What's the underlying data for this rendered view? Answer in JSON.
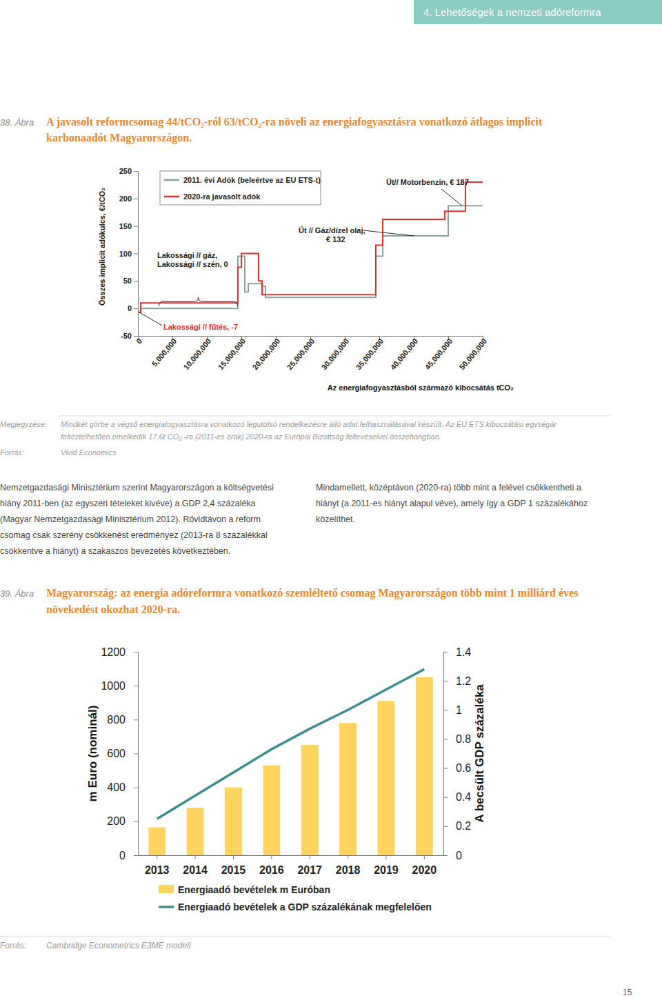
{
  "header": {
    "section": "4. Lehetőségek a nemzeti adóreformra"
  },
  "figures": [
    {
      "number": "38. Ábra",
      "title_lines": [
        "A javasolt reformcsomag 44/tCO₂-ról 63/tCO₂-ra növeli az energiafogyasztásra vonatkozó átlagos implicit",
        "karbonaadót Magyarországon."
      ],
      "note_label": "Megjegyzése:",
      "note_lines": [
        "Mindkét görbe a végső energiafogyasztásra vonatkozó legutolsó rendelkezésre álló adat felhasználásával készült. Az EU ETS kibocsátási egységár",
        "feltéztelhetően emelkedik 17.6t CO₂ -ra (2011-es árak) 2020-ra az Európai Bizottság feltevéseivel összehangban."
      ],
      "source_label": "Forrás:",
      "source": "Vivid Economics"
    },
    {
      "number": "39. Ábra",
      "title_lines": [
        "Magyarország: az energia adóreformra vonatkozó szemléltető csomag Magyarországon több mint 1 milliárd  éves",
        "növekedést okozhat 2020-ra."
      ],
      "source_label": "Forrás:",
      "source": "Cambridge Econometrics E3ME modell"
    }
  ],
  "body": {
    "left_lines": [
      "Nemzetgazdasági Minisztérium szerint Magyarországon a költségvetési",
      "hiány 2011-ben (az egyszeri tételeket kivéve) a GDP 2,4 százaléka",
      "(Magyar Nemzetgazdasági Minisztérium 2012). Rövidtávon a reform",
      "csomag csak szerény csökkenést eredményez (2013-ra 8 százalékkal",
      "csökkentve a hiányt) a szakaszos bevezetés következtében."
    ],
    "right_lines": [
      "Mindamellett, középtávon (2020-ra) több mint a felével csökkentheti a",
      "hiányt (a 2011-es hiányt alapul véve), amely így a GDP 1 százalékához",
      "közelíthet."
    ]
  },
  "page_number": "15",
  "chart_data": [
    {
      "type": "step",
      "xlabel": "Az energiafogyasztásból származó kibocsátás tCO₂",
      "ylabel": "Összes implicit adókulcs, €/tCO₂",
      "x": [
        0,
        400000,
        14500000,
        15000000,
        15500000,
        16000000,
        17500000,
        18000000,
        18500000,
        34500000,
        35500000,
        44500000,
        45000000,
        47500000,
        49500000,
        50000000
      ],
      "series": [
        {
          "name": "2011. évi Adók (beleértve az EU ETS-t)",
          "color": "#8aa39b",
          "values": [
            -7,
            0,
            95,
            95,
            30,
            45,
            45,
            40,
            20,
            95,
            132,
            132,
            187,
            187,
            187,
            187
          ]
        },
        {
          "name": "2020-ra javasolt adók",
          "color": "#e0302a",
          "values": [
            -7,
            10,
            75,
            100,
            100,
            100,
            50,
            25,
            25,
            115,
            162,
            177,
            177,
            230,
            230,
            230
          ]
        }
      ],
      "xlim": [
        0,
        50000000
      ],
      "xticks": [
        0,
        {
          "value": 5000000,
          "label": "5,000,000"
        },
        {
          "value": 10000000,
          "label": "10,000,000"
        },
        {
          "value": 15000000,
          "label": "15,000,000"
        },
        {
          "value": 20000000,
          "label": "20,000,000"
        },
        {
          "value": 25000000,
          "label": "25,000,000"
        },
        {
          "value": 30000000,
          "label": "30,000,000"
        },
        {
          "value": 35000000,
          "label": "35,000,000"
        },
        {
          "value": 40000000,
          "label": "40,000,000"
        },
        {
          "value": 45000000,
          "label": "45,000,000"
        },
        {
          "value": 50000000,
          "label": "50,000,000"
        }
      ],
      "ylim": [
        -50,
        250
      ],
      "yticks": [
        -50,
        0,
        50,
        100,
        150,
        200,
        250
      ],
      "legend": "upper left",
      "annotations": [
        {
          "text": [
            "Út// Motorbenzin, € 187"
          ],
          "x": 47000000,
          "y": 187
        },
        {
          "text": [
            "Út // Gáz/dízel olaj,",
            "€ 132"
          ],
          "x": 40000000,
          "y": 132
        },
        {
          "text": [
            "Lakossági // gáz,",
            "Lakossági // szén, 0"
          ],
          "x": 8750000,
          "y": 0
        },
        {
          "text": [
            "Lakossági // fűtés, -7"
          ],
          "x": 200000,
          "y": -7,
          "color": "#e0302a"
        }
      ]
    },
    {
      "type": "bar",
      "ylabel": "m Euro (nominál)",
      "y2label": "A becsült GDP százaléka",
      "categories": [
        "2013",
        "2014",
        "2015",
        "2016",
        "2017",
        "2018",
        "2019",
        "2020"
      ],
      "series": [
        {
          "name": "Energiaadó bevételek m Euróban",
          "type": "bar",
          "color": "#ffd45e",
          "values": [
            165,
            280,
            400,
            530,
            650,
            780,
            910,
            1050
          ]
        },
        {
          "name": "Energiaadó bevételek a GDP százalékának megfelelően",
          "type": "line",
          "color": "#3b8e8b",
          "axis": "y2",
          "values": [
            0.25,
            0.41,
            0.57,
            0.73,
            0.87,
            1.0,
            1.14,
            1.28
          ]
        }
      ],
      "ylim": [
        0,
        1200
      ],
      "yticks": [
        0,
        200,
        400,
        600,
        800,
        1000,
        1200
      ],
      "y2lim": [
        0,
        1.4
      ],
      "y2ticks": [
        0,
        0.2,
        0.4,
        0.6,
        0.8,
        1,
        1.2,
        1.4
      ],
      "legend": "bottom"
    }
  ]
}
